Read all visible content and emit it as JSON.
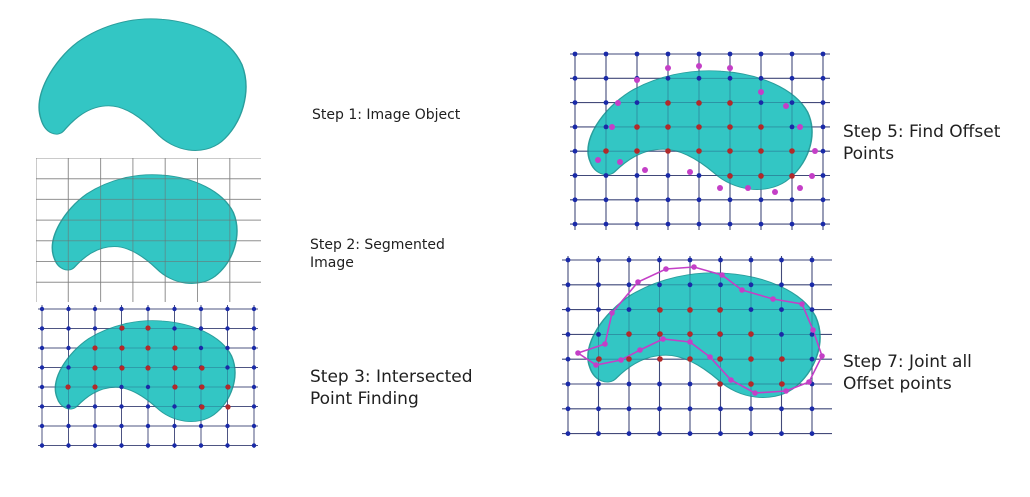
{
  "steps": [
    {
      "id": "step1",
      "lines": [
        "Step 1: Image Object"
      ]
    },
    {
      "id": "step2",
      "lines": [
        "Step 2: Segmented",
        "Image"
      ]
    },
    {
      "id": "step3",
      "lines": [
        "Step 3: Intersected",
        "Point Finding"
      ]
    },
    {
      "id": "step5",
      "lines": [
        "Step 5: Find Offset",
        "Points"
      ]
    },
    {
      "id": "step7",
      "lines": [
        "Step 7: Joint all",
        "Offset points"
      ]
    }
  ],
  "colors": {
    "shape_fill": "#33c6c4",
    "shape_stroke": "#2a9e9c",
    "grid_light": "#c8c8c8",
    "grid_dark": "#6f6f6f",
    "grid_navy": "#1d2660",
    "grid_dot": "#1a2aa8",
    "intersect_dot": "#b22a2a",
    "offset_dot": "#c43fc7",
    "offset_line": "#c43fc7"
  }
}
